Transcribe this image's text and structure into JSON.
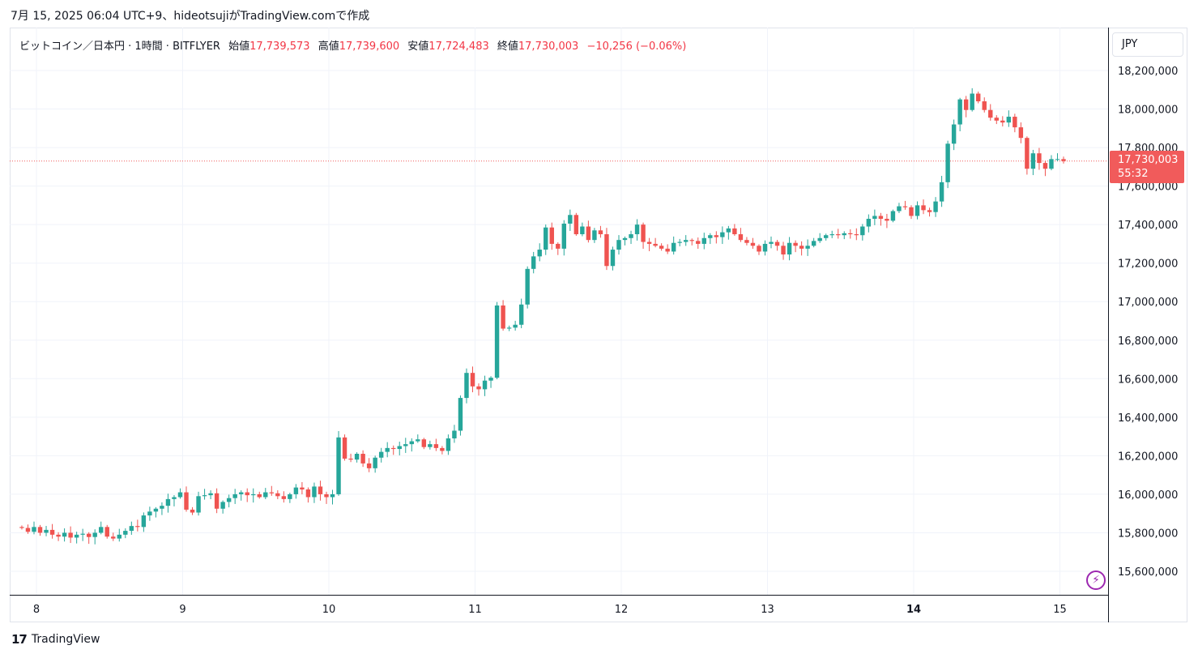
{
  "caption": "7月 15, 2025 06:04 UTC+9、hideotsujiがTradingView.comで作成",
  "legend": {
    "symbol": "ビットコイン／日本円 · 1時間 · BITFLYER",
    "open_label": "始値",
    "open": "17,739,573",
    "high_label": "高値",
    "high": "17,739,600",
    "low_label": "安値",
    "low": "17,724,483",
    "close_label": "終値",
    "close": "17,730,003",
    "change": "−10,256 (−0.06%)"
  },
  "currency": "JPY",
  "price_tag": {
    "price": "17,730,003",
    "countdown": "55:32"
  },
  "brand": {
    "logo": "17",
    "name": "TradingView"
  },
  "bolt_icon": "lightning-icon",
  "colors": {
    "up": "#26a69a",
    "down": "#ef5350",
    "grid": "#f0f3fa",
    "last_price": "#f15b5b"
  },
  "chart_data": {
    "type": "candlestick",
    "interval": "1h",
    "x_labels": [
      "8",
      "9",
      "10",
      "11",
      "12",
      "13",
      "14",
      "15"
    ],
    "bold_x_label": "14",
    "y_ticks": [
      "18,200,000",
      "18,000,000",
      "17,800,000",
      "17,600,000",
      "17,400,000",
      "17,200,000",
      "17,000,000",
      "16,800,000",
      "16,600,000",
      "16,400,000",
      "16,200,000",
      "16,000,000",
      "15,800,000",
      "15,600,000"
    ],
    "ylim": [
      15490000,
      18320000
    ],
    "last_price": 17730003,
    "start_day": 7.9,
    "candles_per_day": 24,
    "closes": [
      15825000,
      15805000,
      15830000,
      15800000,
      15815000,
      15790000,
      15780000,
      15800000,
      15775000,
      15790000,
      15795000,
      15778000,
      15800000,
      15830000,
      15780000,
      15770000,
      15790000,
      15810000,
      15835000,
      15830000,
      15890000,
      15910000,
      15925000,
      15940000,
      15975000,
      15985000,
      16010000,
      15920000,
      15905000,
      15990000,
      15995000,
      16005000,
      15925000,
      15960000,
      15980000,
      16000000,
      16010000,
      15995000,
      16000000,
      15985000,
      16010000,
      16005000,
      15990000,
      15975000,
      16000000,
      16035000,
      16025000,
      15985000,
      16040000,
      16000000,
      15985000,
      16000000,
      16295000,
      16185000,
      16180000,
      16210000,
      16160000,
      16135000,
      16190000,
      16220000,
      16240000,
      16235000,
      16250000,
      16260000,
      16275000,
      16285000,
      16245000,
      16260000,
      16240000,
      16225000,
      16290000,
      16330000,
      16500000,
      16630000,
      16560000,
      16545000,
      16590000,
      16605000,
      16980000,
      16860000,
      16865000,
      16880000,
      16985000,
      17170000,
      17235000,
      17270000,
      17385000,
      17300000,
      17275000,
      17405000,
      17450000,
      17350000,
      17390000,
      17320000,
      17370000,
      17350000,
      17185000,
      17270000,
      17320000,
      17330000,
      17350000,
      17400000,
      17310000,
      17300000,
      17290000,
      17275000,
      17260000,
      17305000,
      17310000,
      17320000,
      17315000,
      17300000,
      17330000,
      17345000,
      17335000,
      17360000,
      17380000,
      17350000,
      17320000,
      17305000,
      17290000,
      17260000,
      17300000,
      17310000,
      17290000,
      17245000,
      17305000,
      17290000,
      17275000,
      17290000,
      17315000,
      17330000,
      17345000,
      17350000,
      17345000,
      17355000,
      17350000,
      17345000,
      17390000,
      17430000,
      17445000,
      17430000,
      17420000,
      17470000,
      17495000,
      17490000,
      17445000,
      17500000,
      17475000,
      17465000,
      17520000,
      17620000,
      17820000,
      17920000,
      18050000,
      17995000,
      18080000,
      18040000,
      17995000,
      17955000,
      17940000,
      17930000,
      17960000,
      17905000,
      17850000,
      17690000,
      17770000,
      17720000,
      17690000,
      17740000,
      17740000,
      17730003
    ]
  }
}
